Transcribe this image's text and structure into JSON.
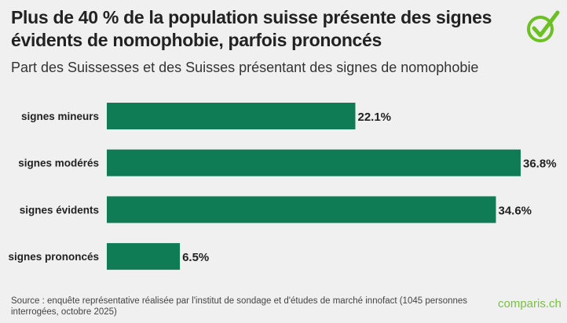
{
  "title": "Plus de 40 % de la population suisse présente des signes évidents de nomophobie, parfois prononcés",
  "subtitle": "Part des Suissesses et des Suisses présentant des signes de nomophobie",
  "source": "Source : enquête représentative réalisée par l'institut de sondage et d'études de marché innofact (1045 personnes interrogées, octobre 2025)",
  "brand": "comparis.ch",
  "logo_icon": "checkmark-circle-icon",
  "colors": {
    "bar": "#0f7c55",
    "brand": "#7ac143",
    "background": "#f0f0f0"
  },
  "chart_data": {
    "type": "bar",
    "orientation": "horizontal",
    "categories": [
      "signes mineurs",
      "signes modérés",
      "signes évidents",
      "signes prononcés"
    ],
    "values": [
      22.1,
      36.8,
      34.6,
      6.5
    ],
    "labels": [
      "22.1%",
      "36.8%",
      "34.6%",
      "6.5%"
    ],
    "unit": "%",
    "grid": false
  }
}
